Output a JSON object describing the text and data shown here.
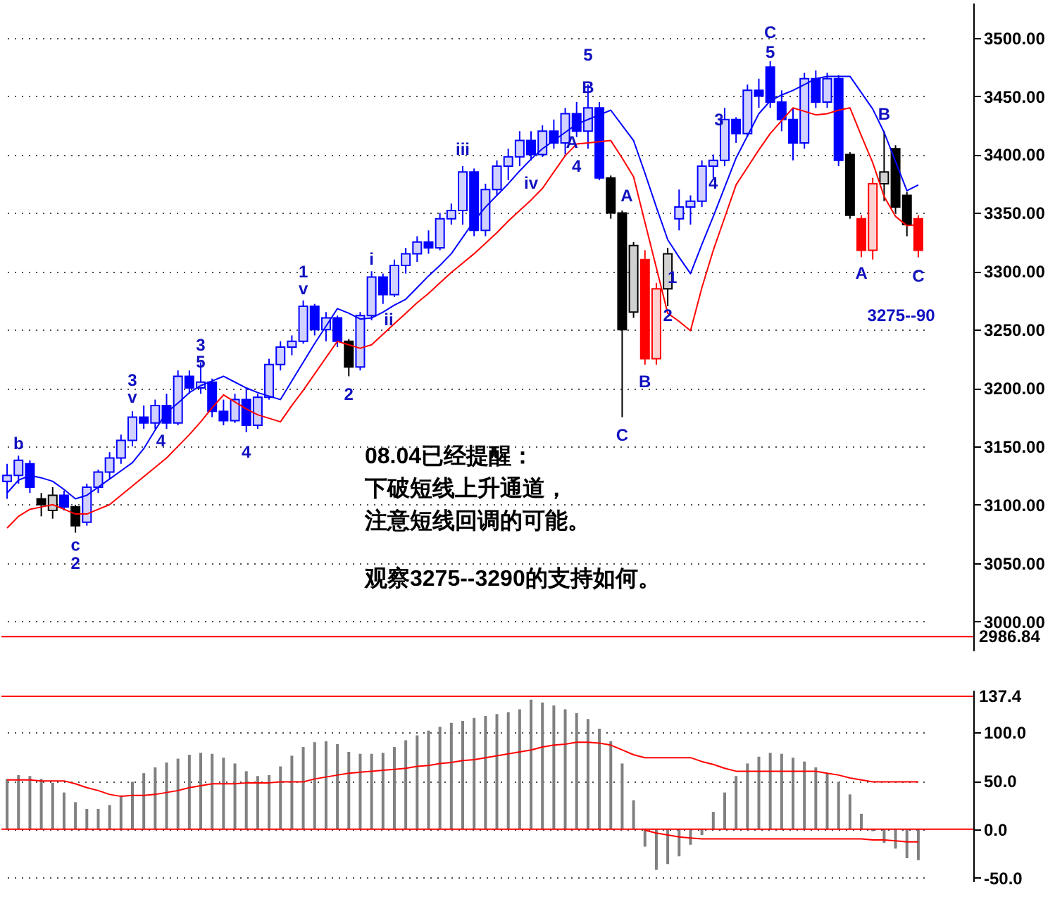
{
  "chart_data": [
    {
      "type": "candlestick",
      "tick_labels": "y",
      "grid": "y",
      "categories": [
        null,
        null,
        null,
        null,
        null,
        null,
        null,
        null,
        null,
        null,
        null,
        null,
        null,
        null,
        null,
        null,
        null,
        null,
        null,
        null,
        null,
        null,
        null,
        null,
        null,
        null,
        null,
        null,
        null,
        null,
        null,
        null,
        null,
        null,
        null,
        null,
        null,
        null,
        null,
        null,
        null,
        null,
        null,
        null,
        null,
        null,
        null,
        null,
        null,
        null,
        null,
        null,
        null,
        null,
        null,
        null,
        null,
        null,
        null,
        null,
        null,
        null,
        null,
        null,
        null,
        null,
        null,
        null,
        null,
        null,
        null,
        null,
        null,
        null,
        null,
        null,
        null,
        null,
        null,
        null,
        null
      ],
      "ohlc": [
        [
          3120,
          3135,
          3105,
          3125
        ],
        [
          3125,
          3142,
          3118,
          3138
        ],
        [
          3135,
          3138,
          3110,
          3115
        ],
        [
          3105,
          3110,
          3090,
          3100
        ],
        [
          3095,
          3115,
          3088,
          3108
        ],
        [
          3108,
          3112,
          3095,
          3098
        ],
        [
          3098,
          3100,
          3076,
          3082
        ],
        [
          3085,
          3118,
          3082,
          3115
        ],
        [
          3115,
          3130,
          3110,
          3128
        ],
        [
          3128,
          3145,
          3122,
          3140
        ],
        [
          3140,
          3160,
          3135,
          3155
        ],
        [
          3155,
          3180,
          3150,
          3175
        ],
        [
          3175,
          3185,
          3165,
          3170
        ],
        [
          3170,
          3190,
          3165,
          3185
        ],
        [
          3185,
          3195,
          3165,
          3170
        ],
        [
          3170,
          3215,
          3168,
          3210
        ],
        [
          3210,
          3215,
          3195,
          3200
        ],
        [
          3200,
          3222,
          3195,
          3205
        ],
        [
          3205,
          3208,
          3175,
          3180
        ],
        [
          3180,
          3190,
          3168,
          3172
        ],
        [
          3172,
          3195,
          3170,
          3190
        ],
        [
          3190,
          3200,
          3162,
          3168
        ],
        [
          3168,
          3195,
          3165,
          3192
        ],
        [
          3192,
          3225,
          3190,
          3220
        ],
        [
          3220,
          3240,
          3215,
          3235
        ],
        [
          3235,
          3245,
          3228,
          3240
        ],
        [
          3240,
          3275,
          3238,
          3270
        ],
        [
          3270,
          3272,
          3245,
          3250
        ],
        [
          3250,
          3265,
          3240,
          3260
        ],
        [
          3260,
          3262,
          3235,
          3240
        ],
        [
          3240,
          3242,
          3210,
          3218
        ],
        [
          3218,
          3265,
          3215,
          3262
        ],
        [
          3262,
          3300,
          3258,
          3295
        ],
        [
          3295,
          3298,
          3272,
          3280
        ],
        [
          3280,
          3310,
          3278,
          3305
        ],
        [
          3305,
          3320,
          3298,
          3315
        ],
        [
          3315,
          3330,
          3308,
          3325
        ],
        [
          3325,
          3335,
          3315,
          3320
        ],
        [
          3320,
          3350,
          3318,
          3345
        ],
        [
          3345,
          3358,
          3340,
          3352
        ],
        [
          3352,
          3390,
          3340,
          3385
        ],
        [
          3385,
          3388,
          3330,
          3335
        ],
        [
          3335,
          3375,
          3330,
          3370
        ],
        [
          3370,
          3395,
          3365,
          3390
        ],
        [
          3390,
          3405,
          3378,
          3398
        ],
        [
          3398,
          3420,
          3390,
          3412
        ],
        [
          3412,
          3420,
          3395,
          3400
        ],
        [
          3400,
          3425,
          3398,
          3420
        ],
        [
          3420,
          3430,
          3405,
          3410
        ],
        [
          3410,
          3440,
          3400,
          3435
        ],
        [
          3435,
          3445,
          3415,
          3420
        ],
        [
          3420,
          3460,
          3405,
          3440
        ],
        [
          3440,
          3445,
          3378,
          3380
        ],
        [
          3380,
          3382,
          3345,
          3350
        ],
        [
          3350,
          3352,
          3175,
          3250
        ],
        [
          3265,
          3325,
          3260,
          3322
        ],
        [
          3310,
          3318,
          3220,
          3225
        ],
        [
          3225,
          3290,
          3220,
          3285
        ],
        [
          3285,
          3320,
          3270,
          3315
        ],
        [
          3345,
          3370,
          3335,
          3355
        ],
        [
          3355,
          3365,
          3340,
          3360
        ],
        [
          3360,
          3395,
          3355,
          3390
        ],
        [
          3390,
          3400,
          3380,
          3395
        ],
        [
          3395,
          3440,
          3390,
          3430
        ],
        [
          3430,
          3432,
          3410,
          3418
        ],
        [
          3418,
          3460,
          3415,
          3455
        ],
        [
          3455,
          3465,
          3440,
          3450
        ],
        [
          3475,
          3480,
          3440,
          3445
        ],
        [
          3445,
          3455,
          3420,
          3430
        ],
        [
          3430,
          3440,
          3395,
          3410
        ],
        [
          3410,
          3470,
          3405,
          3465
        ],
        [
          3465,
          3472,
          3440,
          3445
        ],
        [
          3445,
          3470,
          3440,
          3465
        ],
        [
          3465,
          3468,
          3390,
          3395
        ],
        [
          3400,
          3402,
          3345,
          3348
        ],
        [
          3345,
          3348,
          3312,
          3318
        ],
        [
          3318,
          3380,
          3310,
          3375
        ],
        [
          3375,
          3420,
          3360,
          3385
        ],
        [
          3405,
          3408,
          3350,
          3355
        ],
        [
          3365,
          3368,
          3330,
          3340
        ],
        [
          3345,
          3348,
          3312,
          3318
        ]
      ],
      "colors": [
        "#0000ff",
        "#0000ff",
        "#0000ff",
        "#000000",
        "#000000",
        "#0000ff",
        "#000000",
        "#0000ff",
        "#0000ff",
        "#0000ff",
        "#0000ff",
        "#0000ff",
        "#0000ff",
        "#0000ff",
        "#0000ff",
        "#0000ff",
        "#0000ff",
        "#0000ff",
        "#0000ff",
        "#0000ff",
        "#0000ff",
        "#0000ff",
        "#0000ff",
        "#0000ff",
        "#0000ff",
        "#0000ff",
        "#0000ff",
        "#0000ff",
        "#0000ff",
        "#0000ff",
        "#000000",
        "#0000ff",
        "#0000ff",
        "#0000ff",
        "#0000ff",
        "#0000ff",
        "#0000ff",
        "#0000ff",
        "#0000ff",
        "#0000ff",
        "#0000ff",
        "#0000ff",
        "#0000ff",
        "#0000ff",
        "#0000ff",
        "#0000ff",
        "#0000ff",
        "#0000ff",
        "#0000ff",
        "#0000ff",
        "#0000ff",
        "#0000ff",
        "#0000ff",
        "#000000",
        "#000000",
        "#000000",
        "#ff0000",
        "#ff0000",
        "#000000",
        "#0000ff",
        "#0000ff",
        "#0000ff",
        "#0000ff",
        "#0000ff",
        "#0000ff",
        "#0000ff",
        "#0000ff",
        "#0000ff",
        "#0000ff",
        "#0000ff",
        "#0000ff",
        "#0000ff",
        "#0000ff",
        "#0000ff",
        "#000000",
        "#ff0000",
        "#ff0000",
        "#000000",
        "#000000",
        "#000000",
        "#ff0000"
      ],
      "series": [
        {
          "type": "line",
          "color": "#0000ff",
          "values": [
            3110,
            3121,
            3125,
            3123,
            3120,
            3113,
            3105,
            3108,
            3115,
            3122,
            3129,
            3136,
            3148,
            3164,
            3179,
            3187,
            3196,
            3202,
            3206,
            3210,
            3205,
            3200,
            3196,
            3193,
            3190,
            3206,
            3222,
            3238,
            3253,
            3268,
            3264,
            3259,
            3260,
            3265,
            3271,
            3276,
            3286,
            3296,
            3305,
            3315,
            3329,
            3343,
            3355,
            3365,
            3375,
            3386,
            3396,
            3405,
            3412,
            3419,
            3426,
            3430,
            3434,
            3438,
            3425,
            3412,
            3384,
            3355,
            3327,
            3312,
            3298,
            3323,
            3347,
            3372,
            3397,
            3416,
            3435,
            3446,
            3451,
            3455,
            3460,
            3465,
            3467,
            3467,
            3467,
            3453,
            3439,
            3419,
            3394,
            3369,
            3374
          ]
        },
        {
          "type": "line",
          "color": "#ff0000",
          "values": [
            3080,
            3090,
            3096,
            3098,
            3100,
            3096,
            3092,
            3092,
            3096,
            3100,
            3108,
            3116,
            3124,
            3132,
            3140,
            3150,
            3160,
            3171,
            3183,
            3194,
            3188,
            3182,
            3177,
            3174,
            3171,
            3185,
            3198,
            3212,
            3226,
            3240,
            3237,
            3234,
            3237,
            3246,
            3255,
            3264,
            3273,
            3281,
            3290,
            3299,
            3307,
            3315,
            3324,
            3333,
            3343,
            3352,
            3361,
            3371,
            3385,
            3399,
            3409,
            3410,
            3411,
            3412,
            3397,
            3381,
            3342,
            3303,
            3264,
            3257,
            3249,
            3286,
            3318,
            3346,
            3374,
            3389,
            3404,
            3418,
            3429,
            3440,
            3437,
            3434,
            3435,
            3438,
            3440,
            3416,
            3393,
            3364,
            3347,
            3339,
            3340
          ]
        }
      ],
      "ylim": [
        2975,
        3530
      ],
      "yticks": [
        {
          "value": 3000,
          "label": "3000.00"
        },
        {
          "value": 3050,
          "label": "3050.00"
        },
        {
          "value": 3100,
          "label": "3100.00"
        },
        {
          "value": 3150,
          "label": "3150.00"
        },
        {
          "value": 3200,
          "label": "3200.00"
        },
        {
          "value": 3250,
          "label": "3250.00"
        },
        {
          "value": 3300,
          "label": "3300.00"
        },
        {
          "value": 3350,
          "label": "3350.00"
        },
        {
          "value": 3400,
          "label": "3400.00"
        },
        {
          "value": 3450,
          "label": "3450.00"
        },
        {
          "value": 3500,
          "label": "3500.00"
        }
      ],
      "ref_lines": [
        {
          "axis": "y",
          "value": 2986.84,
          "label": "2986.84",
          "color": "#ff0000"
        }
      ],
      "annotations": [
        "b",
        "c",
        "2",
        "3",
        "v",
        "4",
        "3",
        "5",
        "4",
        "1",
        "v",
        "2",
        "i",
        "ii",
        "iii",
        "iv",
        "4",
        "5",
        "B",
        "A",
        "A",
        "C",
        "B",
        "1",
        "2",
        "3",
        "4",
        "5",
        "C",
        "A",
        "B",
        "C",
        "3275--90",
        "08.04已经提醒：",
        "下破短线上升通道，",
        "注意短线回调的可能。",
        "观察3275--3290的支持如何。"
      ]
    },
    {
      "type": "bar",
      "tick_labels": "y",
      "grid": "y",
      "categories": [
        null,
        null,
        null,
        null,
        null,
        null,
        null,
        null,
        null,
        null,
        null,
        null,
        null,
        null,
        null,
        null,
        null,
        null,
        null,
        null,
        null,
        null,
        null,
        null,
        null,
        null,
        null,
        null,
        null,
        null,
        null,
        null,
        null,
        null,
        null,
        null,
        null,
        null,
        null,
        null,
        null,
        null,
        null,
        null,
        null,
        null,
        null,
        null,
        null,
        null,
        null,
        null,
        null,
        null,
        null,
        null,
        null,
        null,
        null,
        null,
        null,
        null,
        null,
        null,
        null,
        null,
        null,
        null,
        null,
        null,
        null,
        null,
        null,
        null,
        null,
        null,
        null,
        null,
        null,
        null,
        null
      ],
      "series": [
        {
          "type": "bar",
          "color": "#808080",
          "values": [
            52,
            56,
            55,
            52,
            48,
            38,
            28,
            21,
            21,
            25,
            35,
            49,
            58,
            64,
            69,
            73,
            77,
            79,
            78,
            74,
            68,
            60,
            55,
            56,
            65,
            76,
            85,
            90,
            91,
            88,
            80,
            78,
            78,
            79,
            85,
            92,
            97,
            102,
            106,
            110,
            112,
            115,
            117,
            119,
            121,
            124,
            134,
            131,
            128,
            124,
            120,
            114,
            104,
            91,
            68,
            30,
            -18,
            -42,
            -36,
            -28,
            -16,
            -6,
            18,
            38,
            55,
            68,
            75,
            79,
            78,
            74,
            70,
            64,
            58,
            49,
            36,
            16,
            -2,
            -14,
            -20,
            -30,
            -32
          ]
        },
        {
          "type": "line",
          "color": "#ff0000",
          "values": [
            51,
            51,
            51,
            50,
            50,
            50,
            47,
            43,
            40,
            36,
            34,
            35,
            35,
            36,
            38,
            40,
            43,
            45,
            47,
            47,
            47,
            48,
            48,
            48,
            49,
            49,
            49,
            52,
            54,
            56,
            58,
            59,
            60,
            61,
            62,
            63,
            65,
            66,
            68,
            69,
            71,
            72,
            74,
            76,
            78,
            80,
            82,
            85,
            87,
            88,
            90,
            90,
            89,
            87,
            82,
            77,
            74,
            74,
            74,
            74,
            74,
            70,
            67,
            63,
            60,
            60,
            60,
            60,
            60,
            60,
            60,
            60,
            58,
            56,
            53,
            51,
            49,
            49,
            49,
            49,
            49
          ]
        },
        {
          "type": "line",
          "color": "#ff0000",
          "values": [
            null,
            null,
            null,
            null,
            null,
            null,
            null,
            null,
            null,
            null,
            null,
            null,
            null,
            null,
            null,
            null,
            null,
            null,
            null,
            null,
            null,
            null,
            null,
            null,
            null,
            null,
            null,
            null,
            null,
            null,
            null,
            null,
            null,
            null,
            null,
            null,
            null,
            null,
            null,
            null,
            null,
            null,
            null,
            null,
            null,
            null,
            null,
            null,
            null,
            null,
            null,
            null,
            null,
            null,
            null,
            null,
            -1,
            -4,
            -6,
            -8,
            -9,
            -10,
            -10,
            -10,
            -10,
            -10,
            -10,
            -10,
            -10,
            -10,
            -10,
            -10,
            -10,
            -10,
            -10,
            -10,
            -11,
            -11,
            -12,
            -13,
            -13
          ]
        }
      ],
      "ylim": [
        -54,
        144
      ],
      "yticks": [
        {
          "value": -50,
          "label": "-50.0"
        },
        {
          "value": 0,
          "label": "0.0"
        },
        {
          "value": 50,
          "label": "50.0"
        },
        {
          "value": 100,
          "label": "100.0"
        }
      ],
      "ref_lines": [
        {
          "axis": "y",
          "value": 137.4,
          "label": "137.4",
          "color": "#ff0000"
        },
        {
          "axis": "y",
          "value": 0,
          "label": null,
          "color": "#ff0000"
        }
      ]
    }
  ]
}
